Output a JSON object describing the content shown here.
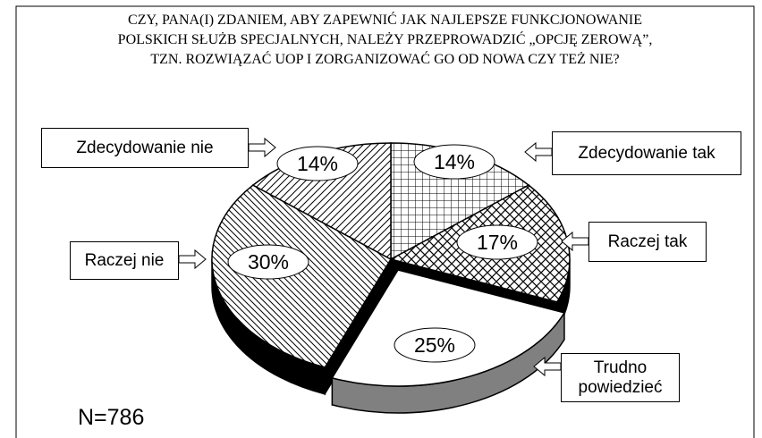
{
  "chart_data": {
    "type": "pie3d",
    "title": [
      "CZY, PANA(I) ZDANIEM, ABY ZAPEWNIĆ JAK NAJLEPSZE FUNKCJONOWANIE",
      "POLSKICH SŁUŻB SPECJALNYCH, NALEŻY PRZEPROWADZIĆ „OPCJĘ ZEROWĄ”,",
      "TZN. ROZWIĄZAĆ UOP I ZORGANIZOWAĆ GO OD NOWA CZY TEŻ NIE?"
    ],
    "categories": [
      "Zdecydowanie tak",
      "Raczej tak",
      "Trudno powiedzieć",
      "Raczej nie",
      "Zdecydowanie nie"
    ],
    "values": [
      14,
      17,
      25,
      30,
      14
    ],
    "value_labels": [
      "14%",
      "17%",
      "25%",
      "30%",
      "14%"
    ],
    "patterns": [
      "grid",
      "crosshatch",
      "none",
      "backslash",
      "slash"
    ],
    "side_colors": [
      "#000000",
      "#000000",
      "#808080",
      "#000000",
      "#000000"
    ],
    "exploded": 2,
    "annotation": "N=786"
  }
}
